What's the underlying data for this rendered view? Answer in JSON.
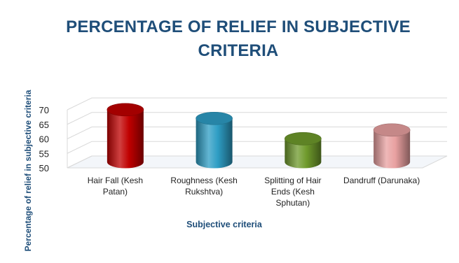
{
  "chart_data": {
    "type": "bar",
    "title": "PERCENTAGE OF RELIEF IN SUBJECTIVE CRITERIA",
    "xlabel": "Subjective criteria",
    "ylabel": "Percentage of relief in subjective criteria",
    "categories": [
      "Hair Fall (Kesh Patan)",
      "Roughness (Kesh Rukshtva)",
      "Splitting of Hair Ends  (Kesh Sphutan)",
      "Dandruff (Darunaka)"
    ],
    "values": [
      68,
      65,
      58,
      61
    ],
    "ylim": [
      50,
      70
    ],
    "yticks": [
      50,
      55,
      60,
      65,
      70
    ],
    "grid": true,
    "legend": "none",
    "colors": [
      "#C00000",
      "#2E9DC4",
      "#6F9A2C",
      "#E8A0A0"
    ]
  }
}
